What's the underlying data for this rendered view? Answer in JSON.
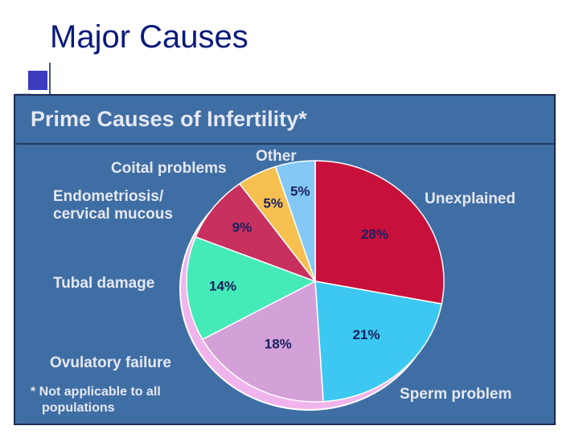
{
  "slide_title": "Major Causes",
  "chart_data": {
    "type": "pie",
    "title": "Prime Causes of Infertility*",
    "categories": [
      "Unexplained",
      "Sperm problem",
      "Ovulatory failure",
      "Tubal damage",
      "Endometriosis/ cervical mucous",
      "Coital problems",
      "Other"
    ],
    "values": [
      28,
      21,
      18,
      14,
      9,
      5,
      5
    ],
    "value_labels": [
      "28%",
      "21%",
      "18%",
      "14%",
      "9%",
      "5%",
      "5%"
    ],
    "colors": [
      "#c8103c",
      "#3cc8f0",
      "#d4a0d8",
      "#44eab8",
      "#c8305e",
      "#f6c050",
      "#84c8f6"
    ],
    "note": "* Not applicable to all populations"
  }
}
